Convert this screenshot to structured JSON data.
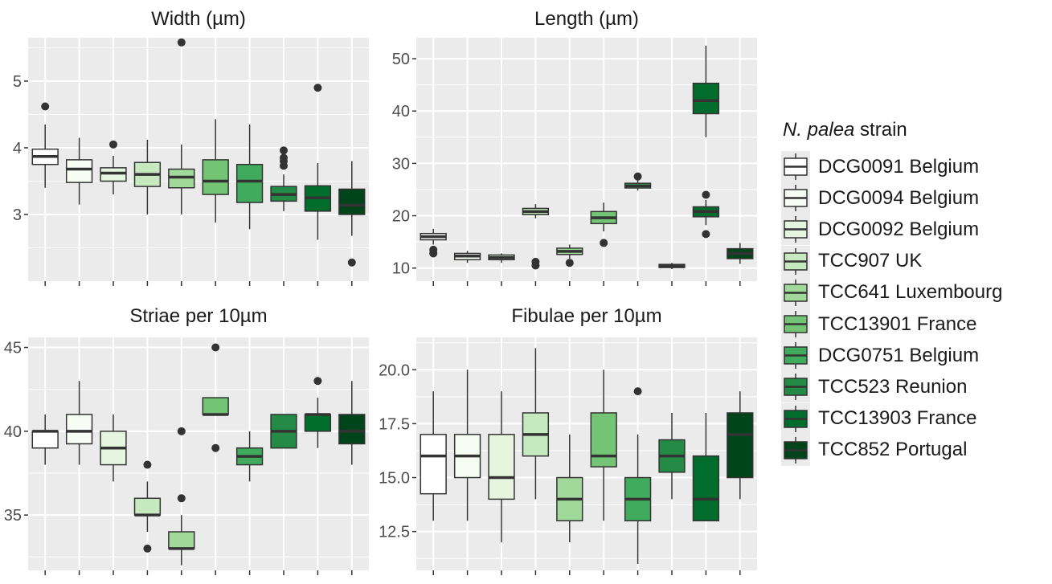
{
  "legend": {
    "title_italic": "N. palea",
    "title_rest": " strain",
    "items": [
      {
        "label": "DCG0091 Belgium",
        "color": "#ffffff"
      },
      {
        "label": "DCG0094 Belgium",
        "color": "#f7fcf5"
      },
      {
        "label": "DCG0092 Belgium",
        "color": "#e5f5e0"
      },
      {
        "label": "TCC907 UK",
        "color": "#c7e9c0"
      },
      {
        "label": "TCC641 Luxembourg",
        "color": "#a1d99b"
      },
      {
        "label": "TCC13901 France",
        "color": "#74c476"
      },
      {
        "label": "DCG0751 Belgium",
        "color": "#41ab5d"
      },
      {
        "label": "TCC523 Reunion",
        "color": "#238b45"
      },
      {
        "label": "TCC13903 France",
        "color": "#006d2c"
      },
      {
        "label": "TCC852 Portugal",
        "color": "#00441b"
      }
    ]
  },
  "colors": {
    "panel_bg": "#ebebeb",
    "grid": "#ffffff",
    "box_line": "#333333",
    "axis_text": "#4d4d4d"
  },
  "chart_data": [
    {
      "type": "box",
      "title": "Width (µm)",
      "ylim": [
        2.0,
        5.65
      ],
      "yticks": [
        3,
        4,
        5
      ],
      "ytick_labels": [
        "3",
        "4",
        "5"
      ],
      "boxes": [
        {
          "min": 3.4,
          "q1": 3.75,
          "median": 3.87,
          "q3": 3.98,
          "max": 4.35,
          "outliers": [
            4.62
          ]
        },
        {
          "min": 3.15,
          "q1": 3.48,
          "median": 3.68,
          "q3": 3.82,
          "max": 4.15,
          "outliers": []
        },
        {
          "min": 3.3,
          "q1": 3.5,
          "median": 3.62,
          "q3": 3.7,
          "max": 3.88,
          "outliers": [
            4.05
          ]
        },
        {
          "min": 3.0,
          "q1": 3.42,
          "median": 3.6,
          "q3": 3.78,
          "max": 4.12,
          "outliers": []
        },
        {
          "min": 3.0,
          "q1": 3.4,
          "median": 3.56,
          "q3": 3.68,
          "max": 4.05,
          "outliers": [
            5.58
          ]
        },
        {
          "min": 2.88,
          "q1": 3.3,
          "median": 3.5,
          "q3": 3.82,
          "max": 4.43,
          "outliers": []
        },
        {
          "min": 2.78,
          "q1": 3.18,
          "median": 3.5,
          "q3": 3.75,
          "max": 4.35,
          "outliers": []
        },
        {
          "min": 3.05,
          "q1": 3.2,
          "median": 3.3,
          "q3": 3.42,
          "max": 3.6,
          "outliers": [
            3.73,
            3.8,
            3.85,
            3.96
          ]
        },
        {
          "min": 2.62,
          "q1": 3.05,
          "median": 3.25,
          "q3": 3.43,
          "max": 3.77,
          "outliers": [
            4.9
          ]
        },
        {
          "min": 2.68,
          "q1": 3.0,
          "median": 3.14,
          "q3": 3.38,
          "max": 3.8,
          "outliers": [
            2.28
          ]
        }
      ]
    },
    {
      "type": "box",
      "title": "Length (µm)",
      "ylim": [
        7.5,
        54.0
      ],
      "yticks": [
        10,
        20,
        30,
        40,
        50
      ],
      "ytick_labels": [
        "10",
        "20",
        "30",
        "40",
        "50"
      ],
      "boxes": [
        {
          "min": 14.5,
          "q1": 15.4,
          "median": 16.0,
          "q3": 16.6,
          "max": 17.5,
          "outliers": [
            12.8,
            13.5
          ]
        },
        {
          "min": 11.0,
          "q1": 11.6,
          "median": 12.3,
          "q3": 12.8,
          "max": 13.3,
          "outliers": []
        },
        {
          "min": 11.0,
          "q1": 11.6,
          "median": 12.0,
          "q3": 12.5,
          "max": 12.8,
          "outliers": []
        },
        {
          "min": 19.5,
          "q1": 20.2,
          "median": 20.8,
          "q3": 21.4,
          "max": 22.2,
          "outliers": [
            10.5,
            11.2
          ]
        },
        {
          "min": 11.8,
          "q1": 12.6,
          "median": 13.2,
          "q3": 13.8,
          "max": 14.5,
          "outliers": [
            11.0
          ]
        },
        {
          "min": 17.0,
          "q1": 18.5,
          "median": 19.6,
          "q3": 20.8,
          "max": 22.5,
          "outliers": [
            14.8
          ]
        },
        {
          "min": 24.8,
          "q1": 25.3,
          "median": 25.7,
          "q3": 26.2,
          "max": 26.8,
          "outliers": [
            27.5
          ]
        },
        {
          "min": 9.8,
          "q1": 10.1,
          "median": 10.4,
          "q3": 10.7,
          "max": 11.0,
          "outliers": []
        },
        {
          "min": 35.0,
          "q1": 39.5,
          "median": 42.0,
          "q3": 45.3,
          "max": 52.5,
          "outliers": [
            24.0,
            16.5
          ]
        },
        {
          "min": 10.8,
          "q1": 11.8,
          "median": 12.8,
          "q3": 13.7,
          "max": 14.8,
          "outliers": []
        }
      ],
      "extra_boxes": [
        {
          "index": 8,
          "min": 18.2,
          "q1": 19.8,
          "median": 20.8,
          "q3": 21.7,
          "max": 23.0
        }
      ]
    },
    {
      "type": "box",
      "title": "Striae per 10µm",
      "ylim": [
        31.7,
        45.6
      ],
      "yticks": [
        35,
        40,
        45
      ],
      "ytick_labels": [
        "35",
        "40",
        "45"
      ],
      "boxes": [
        {
          "min": 38.0,
          "q1": 39.0,
          "median": 40.0,
          "q3": 40.0,
          "max": 41.0,
          "outliers": []
        },
        {
          "min": 38.0,
          "q1": 39.25,
          "median": 40.0,
          "q3": 41.0,
          "max": 43.0,
          "outliers": []
        },
        {
          "min": 37.0,
          "q1": 38.0,
          "median": 39.0,
          "q3": 40.0,
          "max": 41.0,
          "outliers": []
        },
        {
          "min": 34.0,
          "q1": 35.0,
          "median": 35.0,
          "q3": 36.0,
          "max": 37.0,
          "outliers": [
            38.0,
            33.0
          ]
        },
        {
          "min": 32.0,
          "q1": 33.0,
          "median": 33.0,
          "q3": 34.0,
          "max": 35.0,
          "outliers": [
            36.0,
            40.0
          ]
        },
        {
          "min": 41.0,
          "q1": 41.0,
          "median": 41.0,
          "q3": 42.0,
          "max": 42.0,
          "outliers": [
            45.0,
            39.0
          ]
        },
        {
          "min": 37.0,
          "q1": 38.0,
          "median": 38.5,
          "q3": 39.0,
          "max": 40.0,
          "outliers": []
        },
        {
          "min": 39.0,
          "q1": 39.0,
          "median": 40.0,
          "q3": 41.0,
          "max": 41.0,
          "outliers": []
        },
        {
          "min": 39.0,
          "q1": 40.0,
          "median": 41.0,
          "q3": 41.0,
          "max": 42.0,
          "outliers": [
            43.0
          ]
        },
        {
          "min": 38.0,
          "q1": 39.25,
          "median": 40.0,
          "q3": 41.0,
          "max": 43.0,
          "outliers": []
        }
      ]
    },
    {
      "type": "box",
      "title": "Fibulae per 10µm",
      "ylim": [
        10.7,
        21.5
      ],
      "yticks": [
        12.5,
        15.0,
        17.5,
        20.0
      ],
      "ytick_labels": [
        "12.5",
        "15.0",
        "17.5",
        "20.0"
      ],
      "boxes": [
        {
          "min": 13.0,
          "q1": 14.25,
          "median": 16.0,
          "q3": 17.0,
          "max": 19.0,
          "outliers": []
        },
        {
          "min": 13.0,
          "q1": 15.0,
          "median": 16.0,
          "q3": 17.0,
          "max": 20.0,
          "outliers": []
        },
        {
          "min": 12.0,
          "q1": 14.0,
          "median": 15.0,
          "q3": 17.0,
          "max": 19.0,
          "outliers": []
        },
        {
          "min": 14.0,
          "q1": 16.0,
          "median": 17.0,
          "q3": 18.0,
          "max": 21.0,
          "outliers": []
        },
        {
          "min": 12.0,
          "q1": 13.0,
          "median": 14.0,
          "q3": 15.0,
          "max": 17.0,
          "outliers": []
        },
        {
          "min": 13.0,
          "q1": 15.5,
          "median": 16.0,
          "q3": 18.0,
          "max": 20.0,
          "outliers": []
        },
        {
          "min": 11.0,
          "q1": 13.0,
          "median": 14.0,
          "q3": 15.0,
          "max": 17.0,
          "outliers": [
            19.0
          ]
        },
        {
          "min": 14.0,
          "q1": 15.25,
          "median": 16.0,
          "q3": 16.75,
          "max": 18.0,
          "outliers": []
        },
        {
          "min": 13.0,
          "q1": 13.0,
          "median": 14.0,
          "q3": 16.0,
          "max": 18.0,
          "outliers": []
        },
        {
          "min": 14.0,
          "q1": 15.0,
          "median": 17.0,
          "q3": 18.0,
          "max": 19.0,
          "outliers": []
        }
      ]
    }
  ]
}
